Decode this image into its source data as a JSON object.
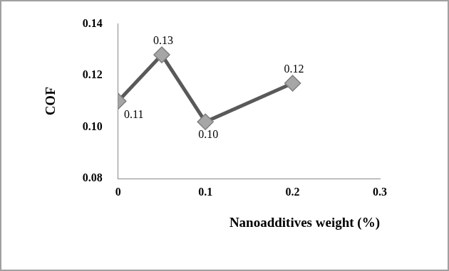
{
  "chart_data": {
    "type": "line",
    "x_label": "Nanoadditives weight (%)",
    "y_label": "COF",
    "x": [
      0,
      0.05,
      0.1,
      0.2
    ],
    "values": [
      0.11,
      0.128,
      0.102,
      0.117
    ],
    "value_labels": [
      "0.11",
      "0.13",
      "0.10",
      "0.12"
    ],
    "data_labels": true,
    "color": "#595959",
    "marker": "diamond",
    "line_style": "solid",
    "xlim": [
      0,
      0.3
    ],
    "xticks": [
      0,
      0.1,
      0.2,
      0.3
    ],
    "ylim": [
      0.08,
      0.14
    ],
    "yticks": [
      {
        "value": 0.08,
        "label": "0.08"
      },
      {
        "value": 0.1,
        "label": "0.10"
      },
      {
        "value": 0.12,
        "label": "0.12"
      },
      {
        "value": 0.14,
        "label": "0.14"
      }
    ],
    "grid": false,
    "legend": false
  }
}
